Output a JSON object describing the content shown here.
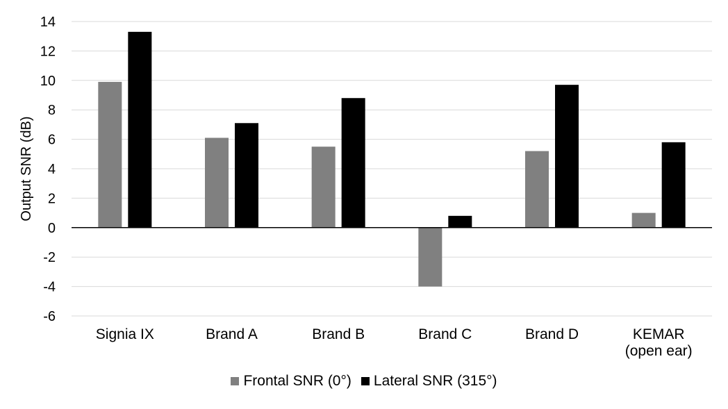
{
  "chart_data": {
    "type": "bar",
    "title": "",
    "xlabel": "",
    "ylabel": "Output SNR (dB)",
    "ylim": [
      -6,
      14
    ],
    "yticks": [
      14,
      12,
      10,
      8,
      6,
      4,
      2,
      0,
      -2,
      -4,
      -6
    ],
    "grid": true,
    "legend_position": "bottom",
    "categories": [
      [
        "Signia IX"
      ],
      [
        "Brand A"
      ],
      [
        "Brand B"
      ],
      [
        "Brand C"
      ],
      [
        "Brand D"
      ],
      [
        "KEMAR",
        "(open ear)"
      ]
    ],
    "series": [
      {
        "name": "Frontal SNR (0°)",
        "color": "#808080",
        "values": [
          9.9,
          6.1,
          5.5,
          -4.0,
          5.2,
          1.0
        ]
      },
      {
        "name": "Lateral SNR (315°)",
        "color": "#000000",
        "values": [
          13.3,
          7.1,
          8.8,
          0.8,
          9.7,
          5.8
        ]
      }
    ]
  }
}
